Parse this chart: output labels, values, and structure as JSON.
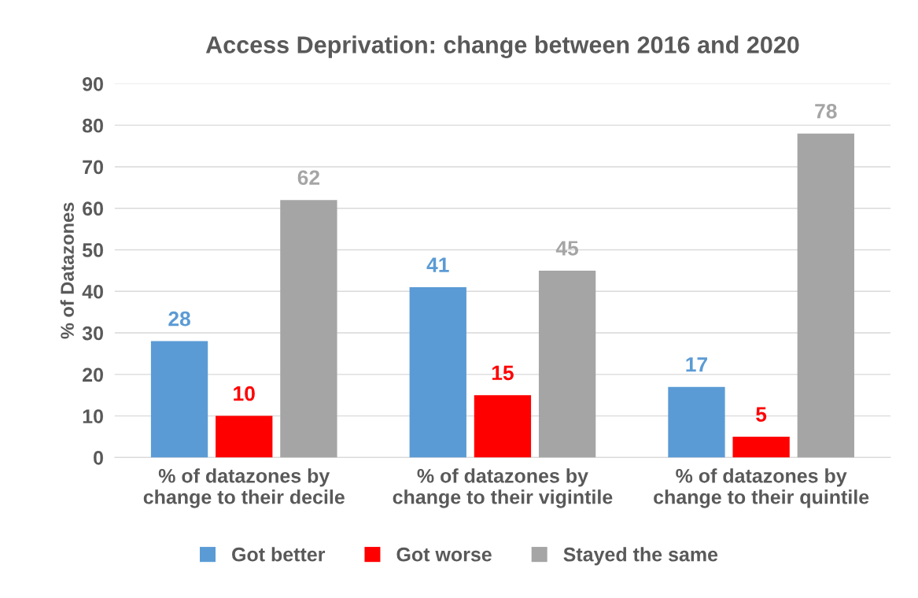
{
  "chart_data": {
    "type": "bar",
    "title": "Access Deprivation: change between 2016 and 2020",
    "ylabel": "% of Datazones",
    "categories": [
      "% of datazones by\nchange to their decile",
      "% of datazones by\nchange to their vigintile",
      "% of datazones by\nchange to their quintile"
    ],
    "series": [
      {
        "name": "Got better",
        "color": "#5b9bd5",
        "values": [
          28,
          41,
          17
        ]
      },
      {
        "name": "Got worse",
        "color": "#ff0000",
        "values": [
          10,
          15,
          5
        ]
      },
      {
        "name": "Stayed the same",
        "color": "#a5a5a5",
        "values": [
          62,
          45,
          78
        ]
      }
    ],
    "ylim": [
      0,
      90
    ],
    "yticks": [
      0,
      10,
      20,
      30,
      40,
      50,
      60,
      70,
      80,
      90
    ],
    "grid": "y",
    "legend": "bottom",
    "data_labels": true
  }
}
